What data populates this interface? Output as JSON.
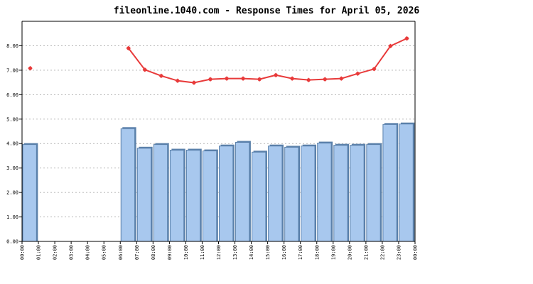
{
  "chart_data": {
    "type": "bar",
    "title": "fileonline.1040.com - Response Times for April 05, 2026",
    "ylim": [
      0,
      9
    ],
    "yticks": [
      "0.00",
      "1.00",
      "2.00",
      "3.00",
      "4.00",
      "5.00",
      "6.00",
      "7.00",
      "8.00"
    ],
    "xticks": [
      "00:00",
      "01:00",
      "02:00",
      "03:00",
      "04:00",
      "05:00",
      "06:00",
      "07:00",
      "08:00",
      "09:00",
      "10:00",
      "11:00",
      "12:00",
      "13:00",
      "14:00",
      "15:00",
      "16:00",
      "17:00",
      "18:00",
      "19:00",
      "20:00",
      "21:00",
      "22:00",
      "23:00",
      "00:00"
    ],
    "grid": true,
    "legend": "none",
    "series": [
      {
        "type": "bar",
        "color": "#a8c8ee",
        "edge_color": "#5a80aa",
        "values": [
          3.96,
          null,
          null,
          null,
          null,
          null,
          4.61,
          3.81,
          3.96,
          3.73,
          3.73,
          3.7,
          3.9,
          4.05,
          3.65,
          3.9,
          3.85,
          3.9,
          4.02,
          3.93,
          3.93,
          3.96,
          4.78,
          4.8
        ]
      },
      {
        "type": "line",
        "color": "#e83a3a",
        "values": [
          7.08,
          null,
          null,
          null,
          null,
          null,
          7.9,
          7.02,
          6.77,
          6.57,
          6.49,
          6.63,
          6.66,
          6.66,
          6.63,
          6.8,
          6.66,
          6.6,
          6.63,
          6.66,
          6.86,
          7.05,
          7.99,
          8.3
        ]
      }
    ]
  }
}
